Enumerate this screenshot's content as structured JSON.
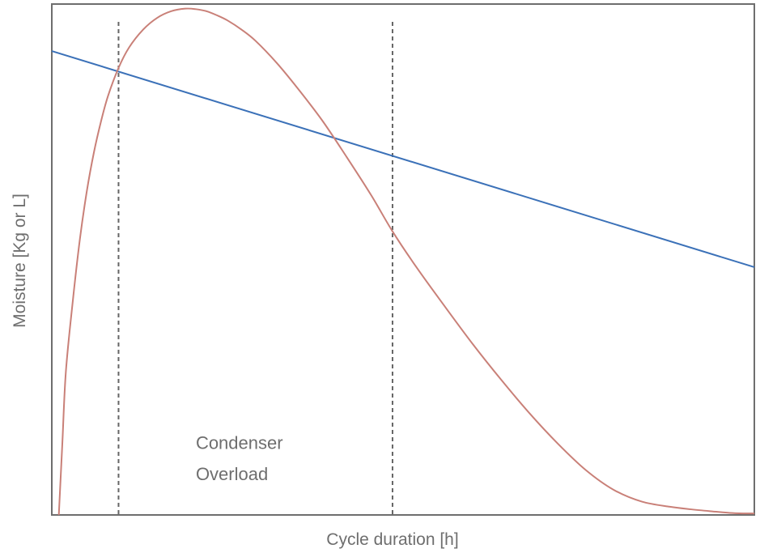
{
  "chart_data": {
    "type": "line",
    "xlabel": "Cycle duration [h]",
    "ylabel": "Moisture [Kg or L]",
    "xlim": [
      0,
      100
    ],
    "ylim": [
      0,
      100
    ],
    "grid": false,
    "show_tick_labels": false,
    "series": [
      {
        "color": "#3b71b8",
        "x": [
          0,
          100
        ],
        "y": [
          90.8,
          48.5
        ]
      },
      {
        "color": "#c98078",
        "x": [
          1,
          1.5,
          2,
          3,
          4,
          5,
          6,
          7,
          8,
          9.5,
          11,
          13,
          15,
          17,
          19,
          20.5,
          22,
          23.5,
          25,
          27,
          29,
          32,
          35,
          38.5,
          42,
          45.5,
          48.5,
          52,
          56,
          60,
          64,
          68,
          72,
          76,
          80,
          84,
          88,
          91,
          94,
          96.5,
          98.5,
          100
        ],
        "y": [
          0,
          14,
          28,
          42,
          54,
          63.5,
          71,
          77,
          82,
          87.5,
          91.5,
          95,
          97.3,
          98.6,
          99.1,
          99.0,
          98.6,
          97.8,
          96.8,
          95.0,
          92.8,
          88.5,
          83.5,
          77.2,
          70.0,
          62.5,
          55.5,
          48.3,
          40.7,
          33.3,
          26.4,
          19.9,
          14.0,
          8.8,
          4.9,
          2.6,
          1.6,
          1.1,
          0.7,
          0.4,
          0.3,
          0.3
        ]
      }
    ],
    "vlines": [
      9.5,
      48.5
    ],
    "annotations": [
      {
        "text": "Condenser",
        "x": 20.5,
        "y": 12.9
      },
      {
        "text": "Overload",
        "x": 20.5,
        "y": 6.8
      }
    ]
  }
}
